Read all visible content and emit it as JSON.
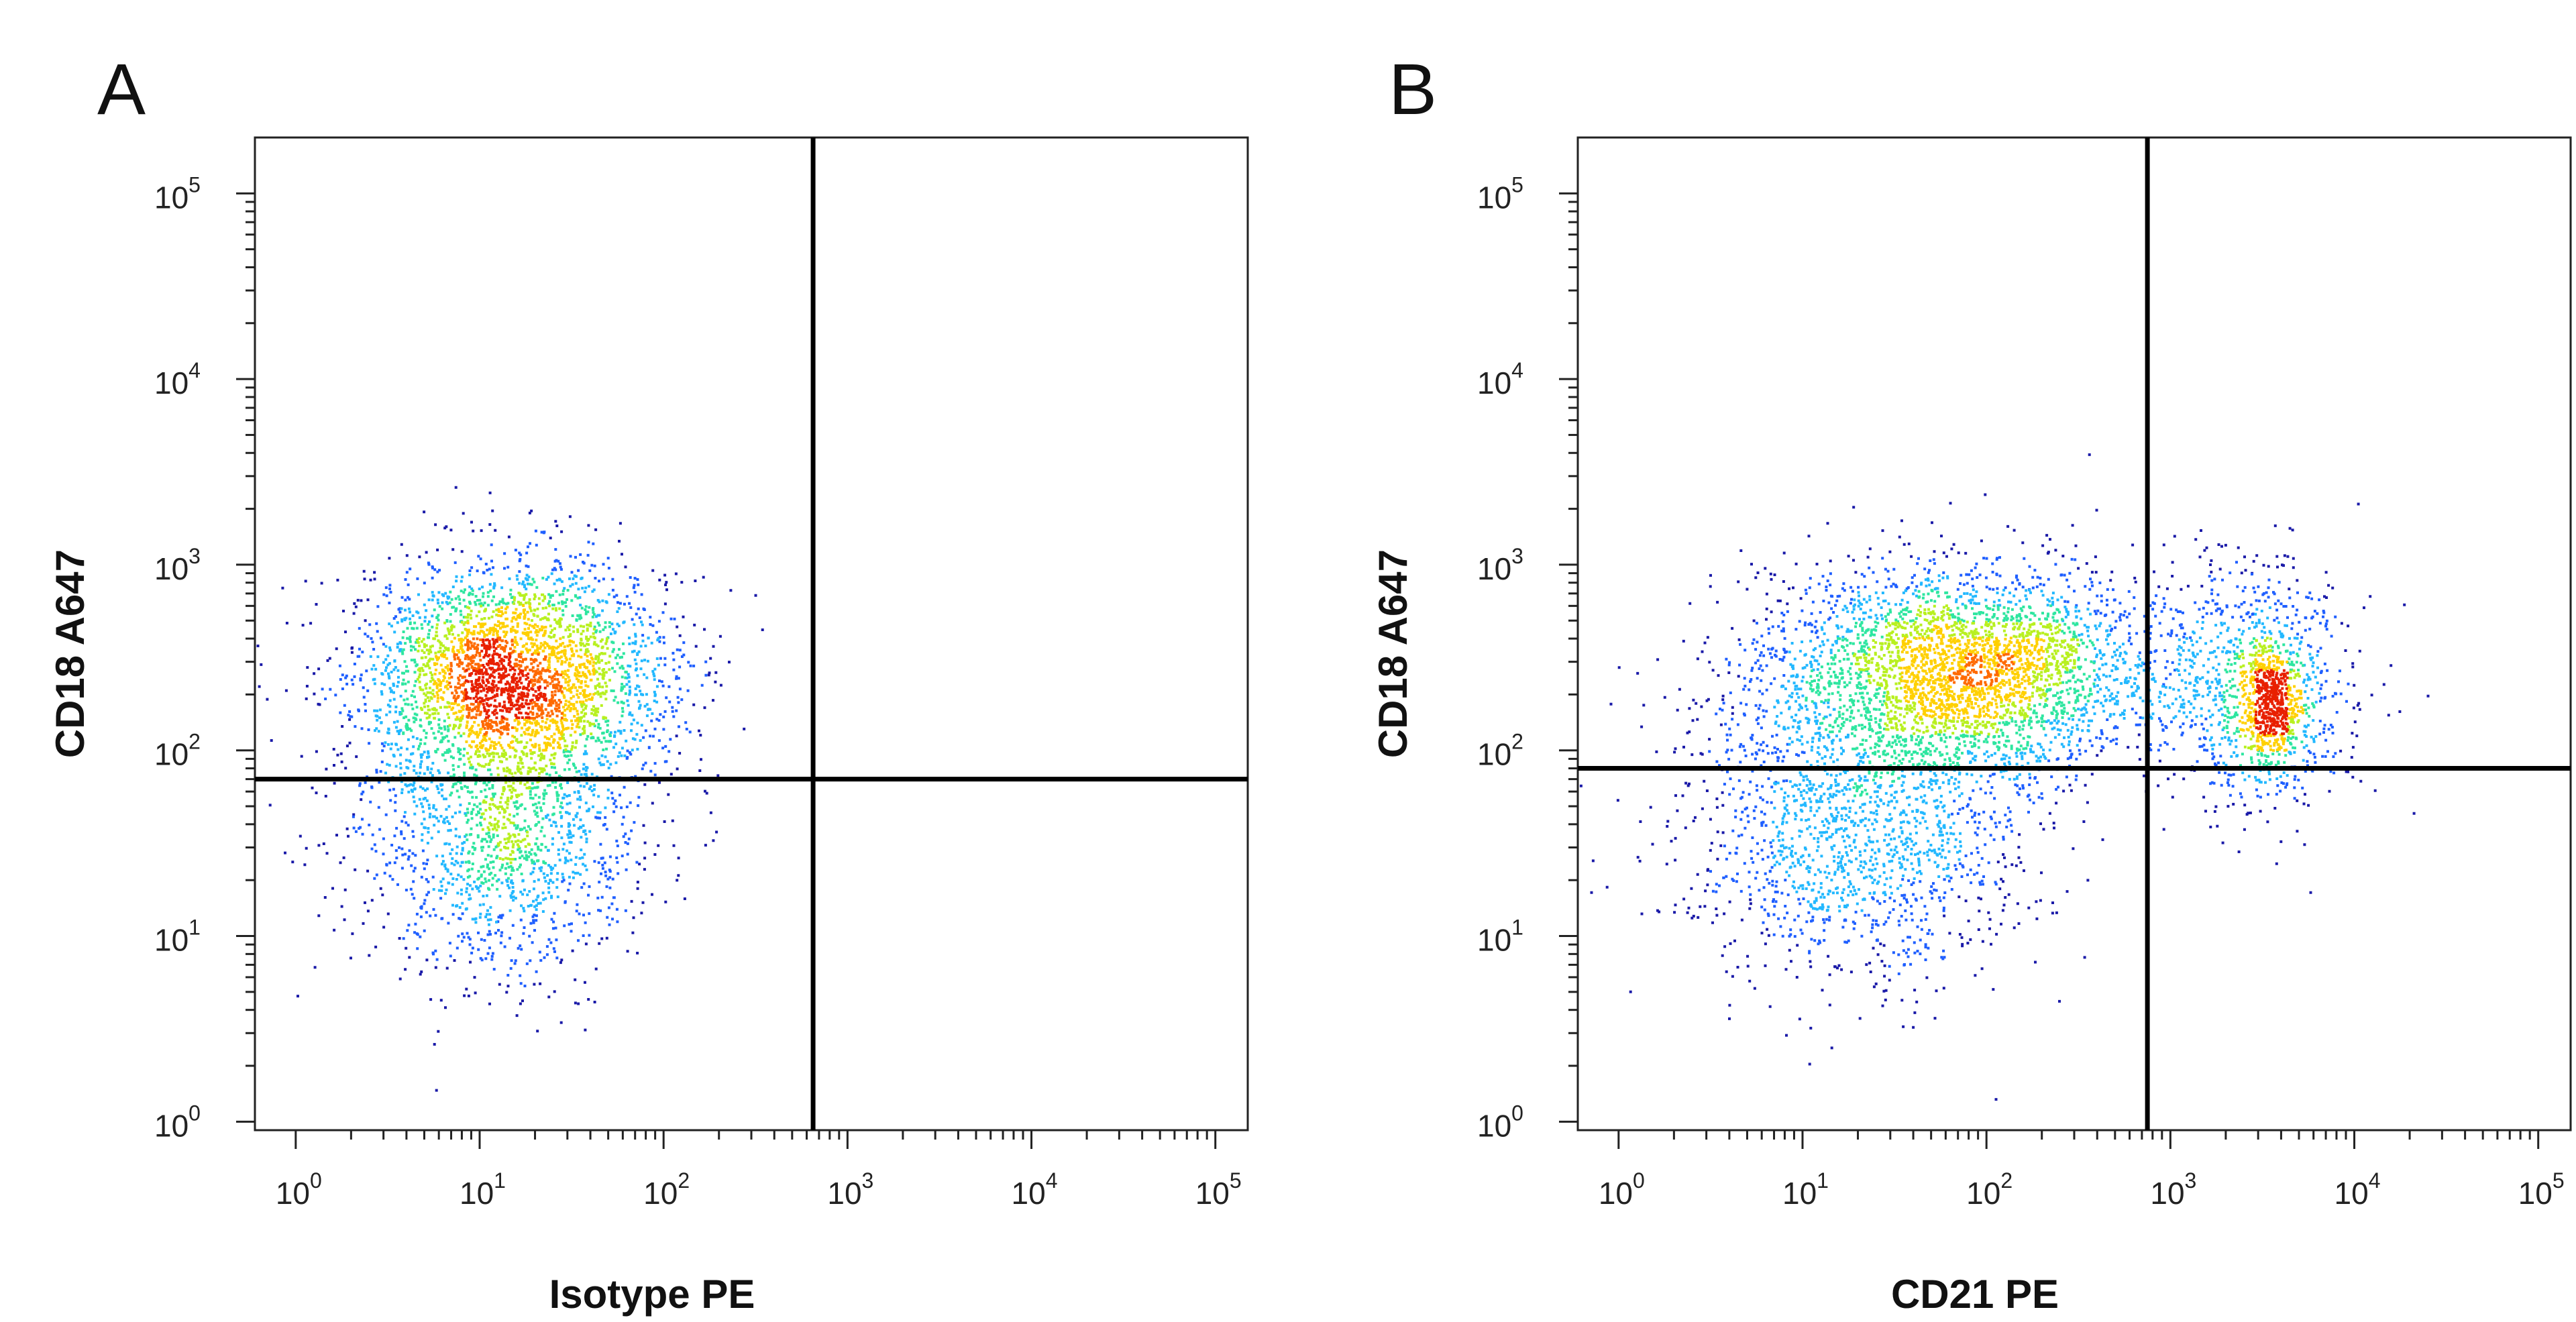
{
  "chart_data": [
    {
      "type": "scatter",
      "panel_label": "A",
      "xlabel": "Isotype PE",
      "ylabel": "CD18 A647",
      "x_scale": "log",
      "y_scale": "log",
      "xlim": [
        0.6,
        150000
      ],
      "ylim": [
        0.9,
        200000
      ],
      "x_ticks": [
        {
          "base": "10",
          "exp": "0",
          "value": 1
        },
        {
          "base": "10",
          "exp": "1",
          "value": 10
        },
        {
          "base": "10",
          "exp": "2",
          "value": 100
        },
        {
          "base": "10",
          "exp": "3",
          "value": 1000
        },
        {
          "base": "10",
          "exp": "4",
          "value": 10000
        },
        {
          "base": "10",
          "exp": "5",
          "value": 100000
        }
      ],
      "y_ticks": [
        {
          "base": "10",
          "exp": "0",
          "value": 1
        },
        {
          "base": "10",
          "exp": "1",
          "value": 10
        },
        {
          "base": "10",
          "exp": "2",
          "value": 100
        },
        {
          "base": "10",
          "exp": "3",
          "value": 1000
        },
        {
          "base": "10",
          "exp": "4",
          "value": 10000
        },
        {
          "base": "10",
          "exp": "5",
          "value": 100000
        }
      ],
      "quadrant_gates": {
        "x": 650,
        "y": 70
      },
      "populations": [
        {
          "center_x": 15,
          "center_y": 260,
          "spread_x": 0.42,
          "spread_y": 0.3,
          "events": 3200
        },
        {
          "center_x": 13,
          "center_y": 35,
          "spread_x": 0.38,
          "spread_y": 0.38,
          "events": 1400
        }
      ],
      "density_colors": [
        "#1a1aa8",
        "#1f5fff",
        "#22b8ff",
        "#2ee6a0",
        "#b8f020",
        "#ffd000",
        "#ff6a00",
        "#e82000"
      ]
    },
    {
      "type": "scatter",
      "panel_label": "B",
      "xlabel": "CD21 PE",
      "ylabel": "CD18 A647",
      "x_scale": "log",
      "y_scale": "log",
      "xlim": [
        0.6,
        150000
      ],
      "ylim": [
        0.9,
        200000
      ],
      "x_ticks": [
        {
          "base": "10",
          "exp": "0",
          "value": 1
        },
        {
          "base": "10",
          "exp": "1",
          "value": 10
        },
        {
          "base": "10",
          "exp": "2",
          "value": 100
        },
        {
          "base": "10",
          "exp": "3",
          "value": 1000
        },
        {
          "base": "10",
          "exp": "4",
          "value": 10000
        },
        {
          "base": "10",
          "exp": "5",
          "value": 100000
        }
      ],
      "y_ticks": [
        {
          "base": "10",
          "exp": "0",
          "value": 1
        },
        {
          "base": "10",
          "exp": "1",
          "value": 10
        },
        {
          "base": "10",
          "exp": "2",
          "value": 100
        },
        {
          "base": "10",
          "exp": "3",
          "value": 1000
        },
        {
          "base": "10",
          "exp": "4",
          "value": 10000
        },
        {
          "base": "10",
          "exp": "5",
          "value": 100000
        }
      ],
      "quadrant_gates": {
        "x": 750,
        "y": 80
      },
      "populations": [
        {
          "center_x": 70,
          "center_y": 270,
          "spread_x": 0.55,
          "spread_y": 0.28,
          "events": 3600
        },
        {
          "center_x": 20,
          "center_y": 35,
          "spread_x": 0.45,
          "spread_y": 0.38,
          "events": 1500
        },
        {
          "center_x": 3000,
          "center_y": 230,
          "spread_x": 0.25,
          "spread_y": 0.33,
          "events": 900
        },
        {
          "center_x": 3500,
          "center_y": 180,
          "spread_x": 0.07,
          "spread_y": 0.17,
          "events": 500
        }
      ],
      "density_colors": [
        "#1a1aa8",
        "#1f5fff",
        "#22b8ff",
        "#2ee6a0",
        "#b8f020",
        "#ffd000",
        "#ff6a00",
        "#e82000"
      ]
    }
  ]
}
